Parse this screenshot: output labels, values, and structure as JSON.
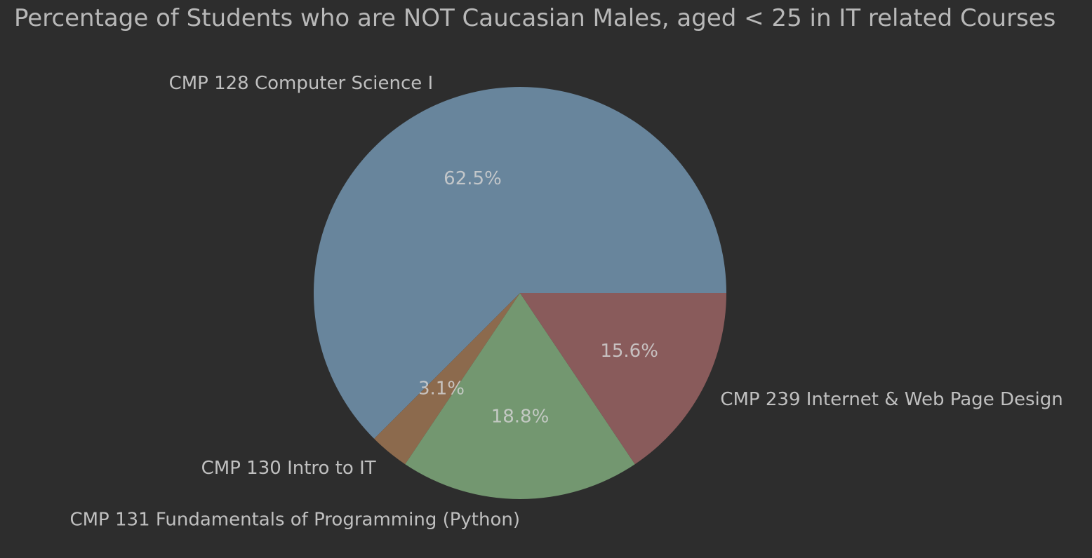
{
  "chart_data": {
    "type": "pie",
    "title": "Percentage of Students who are NOT Caucasian Males, aged < 25 in IT related Courses",
    "slices": [
      {
        "label": "CMP 128 Computer Science I",
        "value": 62.5,
        "pct_label": "62.5%",
        "color": "#68859c"
      },
      {
        "label": "CMP 130 Intro to IT",
        "value": 3.1,
        "pct_label": "3.1%",
        "color": "#8c6a4d"
      },
      {
        "label": "CMP 131 Fundamentals of Programming (Python)",
        "value": 18.8,
        "pct_label": "18.8%",
        "color": "#739770"
      },
      {
        "label": "CMP 239 Internet & Web Page Design",
        "value": 15.6,
        "pct_label": "15.6%",
        "color": "#895b5b"
      }
    ],
    "start_angle": "0° (3 o'clock), counter-clockwise",
    "background": "#2d2d2d"
  }
}
